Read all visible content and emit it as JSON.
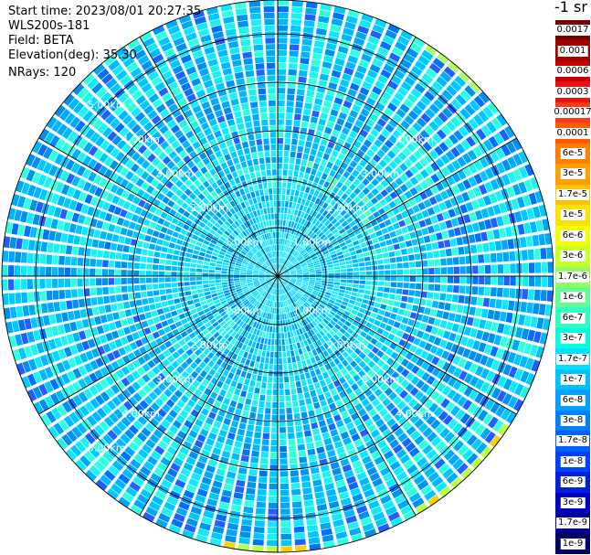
{
  "header": {
    "start_time": "Start time: 2023/08/01 20:27:35",
    "instrument": "WLS200s-181",
    "field": "Field: BETA",
    "elevation": "Elevation(deg): 35.30",
    "nrays": "NRays: 120"
  },
  "colorbar": {
    "unit": "-1 sr",
    "entries": [
      {
        "label": "0.0017",
        "color": "#7a0000"
      },
      {
        "label": "0.001",
        "color": "#a00000"
      },
      {
        "label": "0.0006",
        "color": "#c80000"
      },
      {
        "label": "0.0003",
        "color": "#ee1010"
      },
      {
        "label": "0.00017",
        "color": "#ff3a1a"
      },
      {
        "label": "0.0001",
        "color": "#ff5a00"
      },
      {
        "label": "6e-5",
        "color": "#ff8000"
      },
      {
        "label": "3e-5",
        "color": "#ffa000"
      },
      {
        "label": "1.7e-5",
        "color": "#ffc000"
      },
      {
        "label": "1e-5",
        "color": "#ffe000"
      },
      {
        "label": "6e-6",
        "color": "#f0ff00"
      },
      {
        "label": "3e-6",
        "color": "#c8ff30"
      },
      {
        "label": "1.7e-6",
        "color": "#90ff60"
      },
      {
        "label": "1e-6",
        "color": "#60ff90"
      },
      {
        "label": "6e-7",
        "color": "#30ffc0"
      },
      {
        "label": "3e-7",
        "color": "#00ffe0"
      },
      {
        "label": "1.7e-7",
        "color": "#00e0ff"
      },
      {
        "label": "1e-7",
        "color": "#00c0ff"
      },
      {
        "label": "6e-8",
        "color": "#00a0ff"
      },
      {
        "label": "3e-8",
        "color": "#0080ff"
      },
      {
        "label": "1.7e-8",
        "color": "#0060ff"
      },
      {
        "label": "1e-8",
        "color": "#0040ff"
      },
      {
        "label": "6e-9",
        "color": "#0020e0"
      },
      {
        "label": "3e-9",
        "color": "#0000c0"
      },
      {
        "label": "1.7e-9",
        "color": "#000090"
      },
      {
        "label": "1e-9",
        "color": "#000060"
      }
    ]
  },
  "range_rings": [
    {
      "label": "1.00km",
      "km": 1
    },
    {
      "label": "2.00km",
      "km": 2
    },
    {
      "label": "3.00km",
      "km": 3
    },
    {
      "label": "4.00km",
      "km": 4
    },
    {
      "label": "5.00km",
      "km": 5
    }
  ],
  "map": {
    "n_rays": 120,
    "n_spokes": 12,
    "max_range_km": 5.7,
    "background_color": "#ffffff",
    "ring_color": "#000000"
  }
}
